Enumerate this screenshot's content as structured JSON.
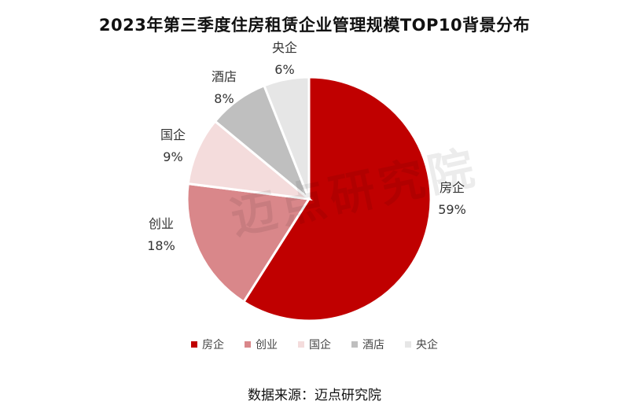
{
  "chart_data": {
    "type": "pie",
    "title": "2023年第三季度住房租赁企业管理规模TOP10背景分布",
    "slices": [
      {
        "label": "房企",
        "value": 59,
        "display": "59%",
        "color": "#c00000"
      },
      {
        "label": "创业",
        "value": 18,
        "display": "18%",
        "color": "#d9878a"
      },
      {
        "label": "国企",
        "value": 9,
        "display": "9%",
        "color": "#f4dcdc"
      },
      {
        "label": "酒店",
        "value": 8,
        "display": "8%",
        "color": "#bfbfbf"
      },
      {
        "label": "央企",
        "value": 6,
        "display": "6%",
        "color": "#e6e6e6"
      }
    ],
    "legend_position": "bottom"
  },
  "source": "数据来源：迈点研究院",
  "watermark": "迈点研究院"
}
